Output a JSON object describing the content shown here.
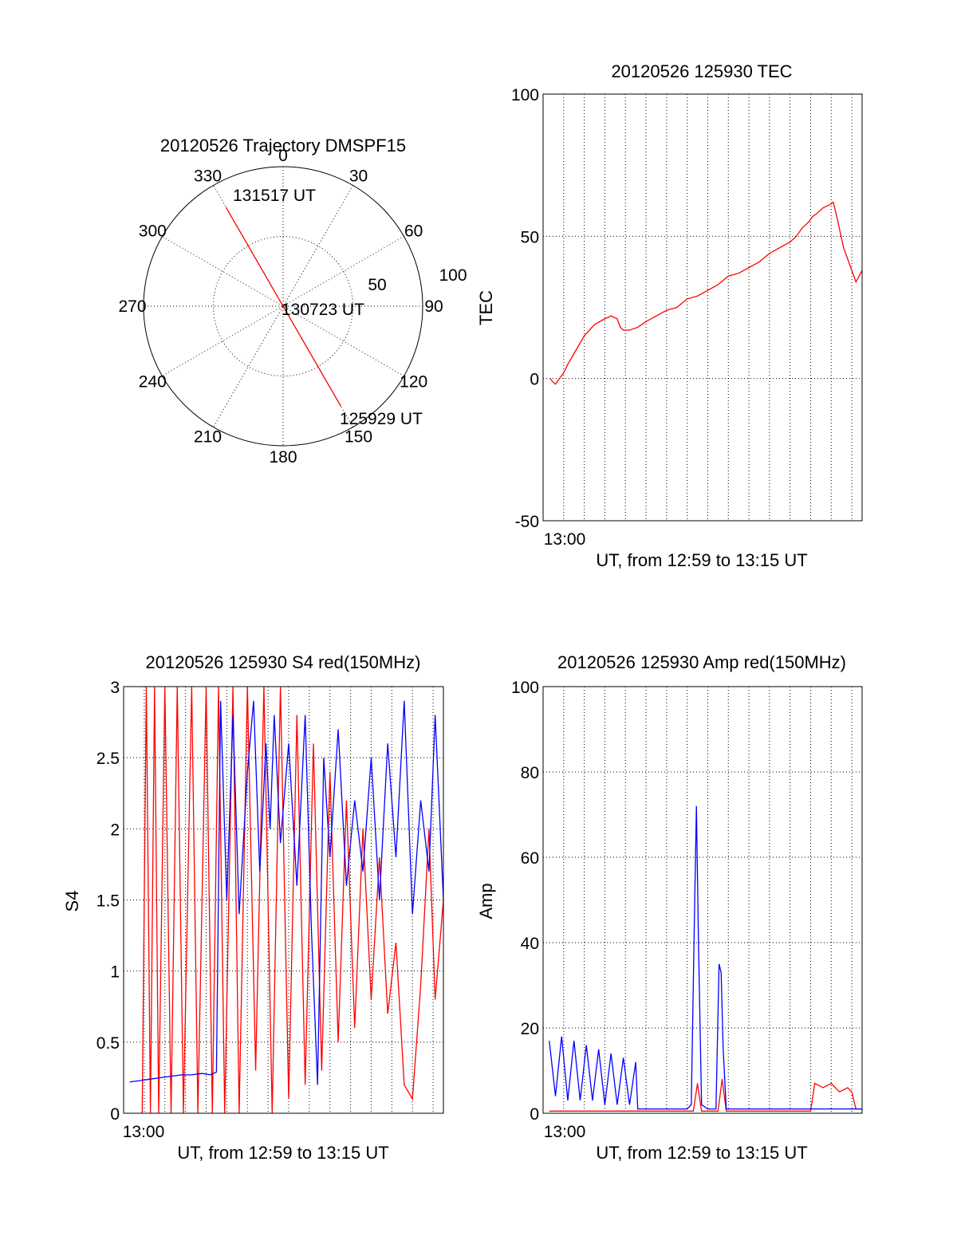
{
  "colors": {
    "red": "#ff0000",
    "blue": "#0000ff",
    "axis": "#000000"
  },
  "chart_data": [
    {
      "id": "trajectory",
      "type": "polar",
      "title": "20120526 Trajectory DMSPF15",
      "angle_labels": [
        "0",
        "30",
        "60",
        "90",
        "120",
        "150",
        "180",
        "210",
        "240",
        "270",
        "300",
        "330"
      ],
      "radial_labels": [
        "50",
        "100"
      ],
      "rlim": [
        0,
        100
      ],
      "grid": true,
      "series": [
        {
          "color": "red",
          "points": [
            {
              "az": 330,
              "r": 82
            },
            {
              "az": 150,
              "r": 83
            }
          ]
        }
      ],
      "annotations": [
        {
          "text": "131517 UT",
          "az": 333,
          "r": 82
        },
        {
          "text": "130723 UT",
          "az": 95,
          "r": 2
        },
        {
          "text": "125929 UT",
          "az": 150,
          "r": 83
        }
      ]
    },
    {
      "id": "tec",
      "type": "line",
      "title": "20120526 125930 TEC",
      "xlabel": "UT, from 12:59 to 13:15 UT",
      "ylabel": "TEC",
      "xtick_labels": [
        "13:00"
      ],
      "ylim": [
        -50,
        100
      ],
      "yticks": [
        -50,
        0,
        50,
        100
      ],
      "grid": true,
      "series": [
        {
          "color": "red",
          "x": [
            0.35,
            0.45,
            0.6,
            0.8,
            1.0,
            1.2,
            1.6,
            2.0,
            2.5,
            3.0,
            3.3,
            3.6,
            3.75,
            3.9,
            4.2,
            4.6,
            5.0,
            5.5,
            6.0,
            6.5,
            7.0,
            7.5,
            8.0,
            8.5,
            9.0,
            9.5,
            10.0,
            10.5,
            11.0,
            11.5,
            12.0,
            12.3,
            12.6,
            12.9,
            13.1,
            13.3,
            13.6,
            13.9,
            14.1,
            14.3,
            14.6,
            14.9,
            15.2,
            15.5
          ],
          "y": [
            0,
            -1,
            -2,
            0,
            2,
            5,
            10,
            15,
            19,
            21,
            22,
            21,
            18,
            17,
            17,
            18,
            20,
            22,
            24,
            25,
            28,
            29,
            31,
            33,
            36,
            37,
            39,
            41,
            44,
            46,
            48,
            50,
            53,
            55,
            57,
            58,
            60,
            61,
            62,
            56,
            46,
            40,
            34,
            38
          ]
        }
      ]
    },
    {
      "id": "s4",
      "type": "line",
      "title": "20120526 125930 S4 red(150MHz)",
      "xlabel": "UT, from 12:59 to 13:15 UT",
      "ylabel": "S4",
      "xtick_labels": [
        "13:00"
      ],
      "ylim": [
        0,
        3
      ],
      "yticks": [
        "0",
        "0.5",
        "1",
        "1.5",
        "2",
        "2.5",
        "3"
      ],
      "grid": true,
      "series": [
        {
          "color": "red",
          "note": "noisy trace, envelope samples",
          "x": [
            0.9,
            1.1,
            1.3,
            1.5,
            1.7,
            2.0,
            2.3,
            2.6,
            2.9,
            3.3,
            3.6,
            4.0,
            4.3,
            4.6,
            4.9,
            5.3,
            5.6,
            6.0,
            6.4,
            6.8,
            7.2,
            7.6,
            8.0,
            8.4,
            8.8,
            9.2,
            9.6,
            10.0,
            10.4,
            10.8,
            11.2,
            11.6,
            12.0,
            12.4,
            12.8,
            13.2,
            13.6,
            14.0,
            14.4,
            14.8,
            15.1,
            15.5
          ],
          "y": [
            0,
            3,
            0,
            3,
            0,
            3,
            0,
            3,
            0,
            3,
            0,
            3,
            0,
            3,
            0,
            3,
            0,
            3,
            0.3,
            3,
            0,
            3,
            0.1,
            2.8,
            0.2,
            2.6,
            0.3,
            2.4,
            0.5,
            2.2,
            0.6,
            2.0,
            0.8,
            1.8,
            0.7,
            1.2,
            0.2,
            0.1,
            0.9,
            2.0,
            0.8,
            1.5
          ]
        },
        {
          "color": "blue",
          "x": [
            0.3,
            0.8,
            1.3,
            1.8,
            2.3,
            2.8,
            3.3,
            3.8,
            4.2,
            4.5,
            4.7,
            5.0,
            5.3,
            5.6,
            6.0,
            6.3,
            6.6,
            6.9,
            7.1,
            7.3,
            7.6,
            8.0,
            8.4,
            8.8,
            9.1,
            9.4,
            9.7,
            10.0,
            10.4,
            10.8,
            11.2,
            11.6,
            12.0,
            12.4,
            12.8,
            13.2,
            13.6,
            14.0,
            14.4,
            14.8,
            15.1,
            15.5
          ],
          "y": [
            0.22,
            0.23,
            0.24,
            0.25,
            0.26,
            0.27,
            0.27,
            0.28,
            0.27,
            0.29,
            2.9,
            1.5,
            2.8,
            1.4,
            2.4,
            2.9,
            1.7,
            2.6,
            2.0,
            2.8,
            1.9,
            2.6,
            1.6,
            2.8,
            1.3,
            0.2,
            2.5,
            1.8,
            2.7,
            1.6,
            2.2,
            1.7,
            2.5,
            1.5,
            2.6,
            1.8,
            2.9,
            1.4,
            2.2,
            1.7,
            2.8,
            1.5
          ]
        }
      ]
    },
    {
      "id": "amp",
      "type": "line",
      "title": "20120526 125930 Amp red(150MHz)",
      "xlabel": "UT, from 12:59 to 13:15 UT",
      "ylabel": "Amp",
      "xtick_labels": [
        "13:00"
      ],
      "ylim": [
        0,
        100
      ],
      "yticks": [
        0,
        20,
        40,
        60,
        80,
        100
      ],
      "grid": true,
      "series": [
        {
          "color": "red",
          "x": [
            0.3,
            2.0,
            4.0,
            6.0,
            7.3,
            7.5,
            7.7,
            8.0,
            8.5,
            8.7,
            8.9,
            9.2,
            10.5,
            12.0,
            13.0,
            13.2,
            13.6,
            14.0,
            14.4,
            14.8,
            15.0,
            15.2,
            15.5
          ],
          "y": [
            0.5,
            0.5,
            0.5,
            0.5,
            0.5,
            7,
            0.5,
            0.5,
            0.5,
            8,
            0.5,
            0.5,
            0.5,
            0.5,
            0.5,
            7,
            6,
            7,
            5,
            6,
            5,
            1,
            1
          ]
        },
        {
          "color": "blue",
          "x": [
            0.3,
            0.6,
            0.9,
            1.2,
            1.5,
            1.8,
            2.1,
            2.4,
            2.7,
            3.0,
            3.3,
            3.6,
            3.9,
            4.2,
            4.5,
            4.6,
            5.0,
            6.0,
            7.0,
            7.2,
            7.35,
            7.45,
            7.55,
            7.7,
            8.0,
            8.4,
            8.55,
            8.65,
            8.75,
            8.9,
            9.5,
            11.0,
            12.5,
            14.0,
            15.5
          ],
          "y": [
            17,
            4,
            18,
            3,
            17,
            3,
            16,
            3,
            15,
            2,
            14,
            2,
            13,
            2,
            12,
            1,
            1,
            1,
            1,
            2,
            45,
            72,
            40,
            2,
            1,
            1,
            35,
            33,
            15,
            1,
            1,
            1,
            1,
            1,
            1
          ]
        }
      ]
    }
  ]
}
